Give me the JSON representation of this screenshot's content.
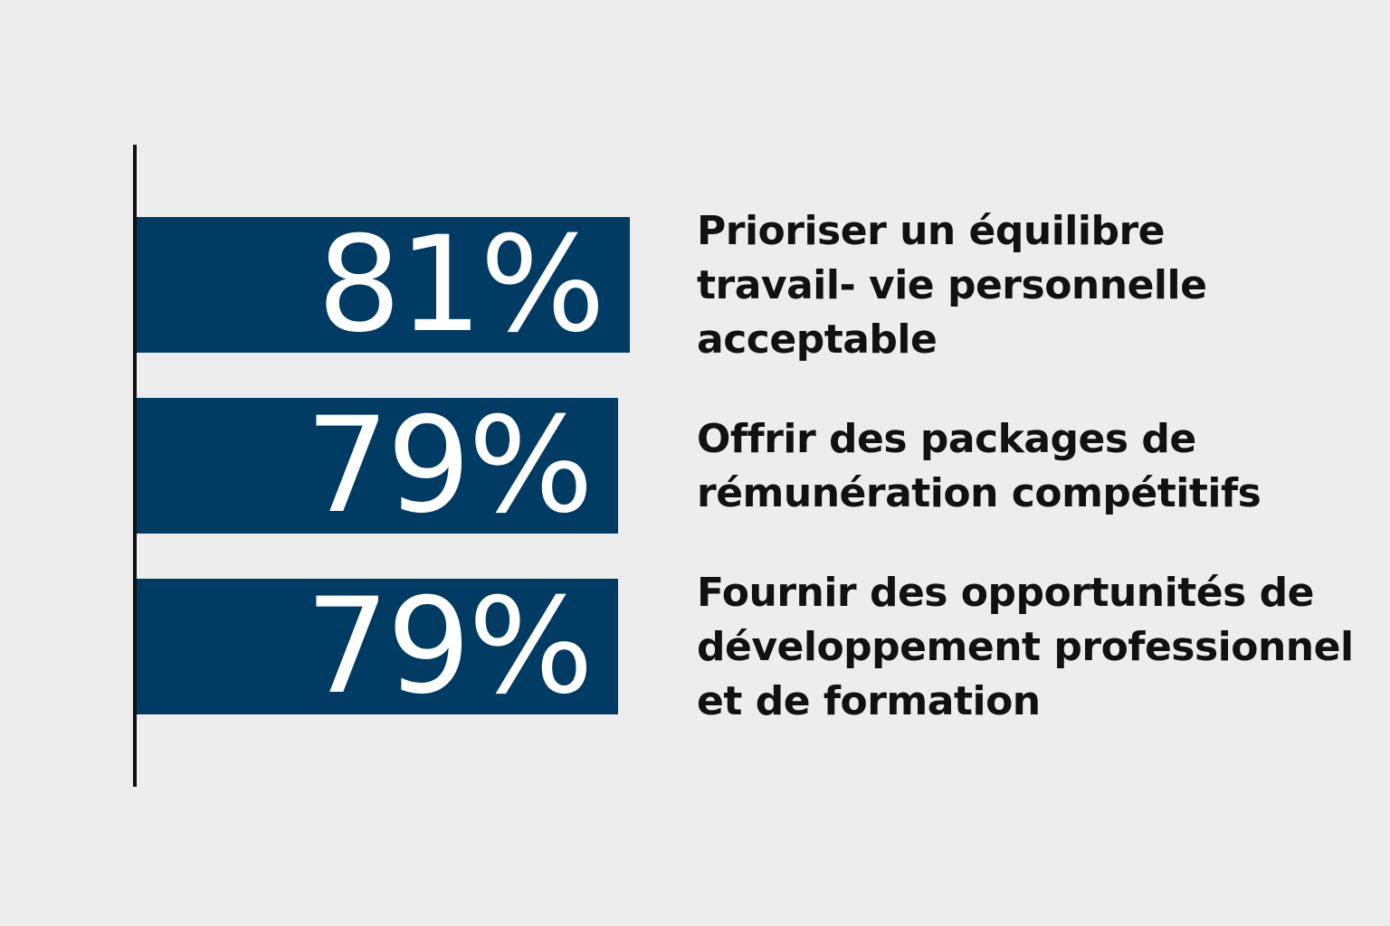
{
  "colors": {
    "background": "#EDEDED",
    "bar": "#003B63",
    "value_text": "#FFFFFF",
    "label_text": "#111111",
    "axis": "#111111"
  },
  "chart_data": {
    "type": "bar",
    "orientation": "horizontal",
    "categories": [
      "Prioriser un équilibre travail- vie personnelle acceptable",
      "Offrir des packages de rémunération compétitifs",
      "Fournir des opportunités de développement professionnel et de formation"
    ],
    "values": [
      81,
      79,
      79
    ],
    "value_labels": [
      "81%",
      "79%",
      "79%"
    ],
    "label_lines": [
      [
        "Prioriser un équilibre",
        "travail- vie personnelle",
        "acceptable"
      ],
      [
        "Offrir des packages de",
        "rémunération compétitifs"
      ],
      [
        "Fournir des opportunités de",
        "développement professionnel",
        "et de formation"
      ]
    ],
    "unit": "%",
    "grid": false,
    "legend": "none"
  }
}
